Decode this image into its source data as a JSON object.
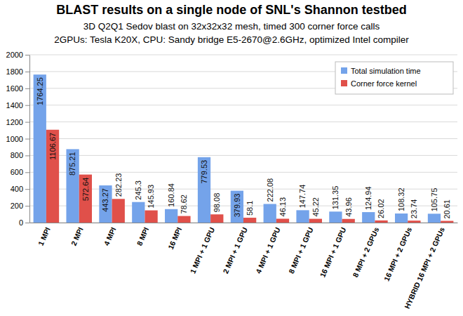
{
  "chart_data": {
    "type": "bar",
    "title": "BLAST results on a single node of SNL's Shannon testbed",
    "subtitle": [
      "3D Q2Q1 Sedov blast on 32x32x32 mesh, timed 300 corner force calls",
      "2GPUs: Tesla K20X, CPU: Sandy bridge E5-2670@2.6GHz, optimized Intel compiler"
    ],
    "categories": [
      "1 MPI",
      "2 MPI",
      "4 MPI",
      "8 MPI",
      "16 MPI",
      "1 MPI + 1 GPU",
      "2 MPI + 1 GPU",
      "4 MPI + 1 GPU",
      "8 MPI + 1 GPU",
      "16 MPI + 1 GPU",
      "8 MPI + 2 GPUs",
      "16 MPI + 2 GPUs",
      "HYBRID 16 MPI + 2 GPUs"
    ],
    "series": [
      {
        "name": "Total simulation time",
        "color": "#74a3ea",
        "values": [
          1764.25,
          875.21,
          443.27,
          245.3,
          160.84,
          779.53,
          379.93,
          222.08,
          147.74,
          131.35,
          124.94,
          108.32,
          105.75
        ]
      },
      {
        "name": "Corner force kernel",
        "color": "#e0504a",
        "values": [
          1106.67,
          572.64,
          282.23,
          145.93,
          78.62,
          98.08,
          58.1,
          46.13,
          45.22,
          43.96,
          26.02,
          23.74,
          20.61
        ]
      }
    ],
    "ylim": [
      0,
      2000
    ],
    "yticks": [
      0,
      200,
      400,
      600,
      800,
      1000,
      1200,
      1400,
      1600,
      1800,
      2000
    ],
    "grid": true,
    "legend": "top-right",
    "data_labels": true
  }
}
